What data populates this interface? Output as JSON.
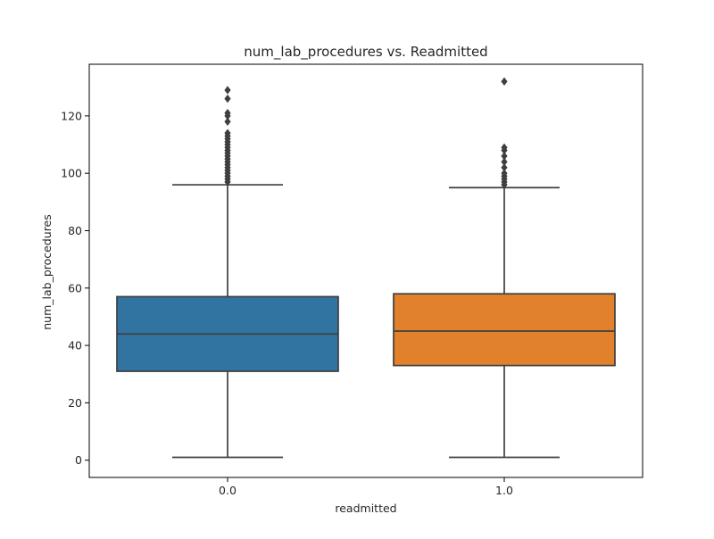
{
  "chart_data": {
    "type": "box",
    "title": "num_lab_procedures vs. Readmitted",
    "xlabel": "readmitted",
    "ylabel": "num_lab_procedures",
    "ylim": [
      -6,
      138
    ],
    "yticks": [
      0,
      20,
      40,
      60,
      80,
      100,
      120
    ],
    "categories": [
      "0.0",
      "1.0"
    ],
    "colors": [
      "#3274a1",
      "#e1812c"
    ],
    "grid": false,
    "legend": "none",
    "boxes": [
      {
        "category": "0.0",
        "whisker_low": 1,
        "q1": 31,
        "median": 44,
        "q3": 57,
        "whisker_high": 96,
        "outliers": [
          97,
          98,
          99,
          100,
          101,
          102,
          103,
          104,
          105,
          106,
          107,
          108,
          109,
          110,
          111,
          112,
          113,
          114,
          118,
          120,
          121,
          126,
          129
        ]
      },
      {
        "category": "1.0",
        "whisker_low": 1,
        "q1": 33,
        "median": 45,
        "q3": 58,
        "whisker_high": 95,
        "outliers": [
          96,
          97,
          98,
          99,
          100,
          102,
          104,
          106,
          108,
          109,
          132
        ]
      }
    ]
  }
}
